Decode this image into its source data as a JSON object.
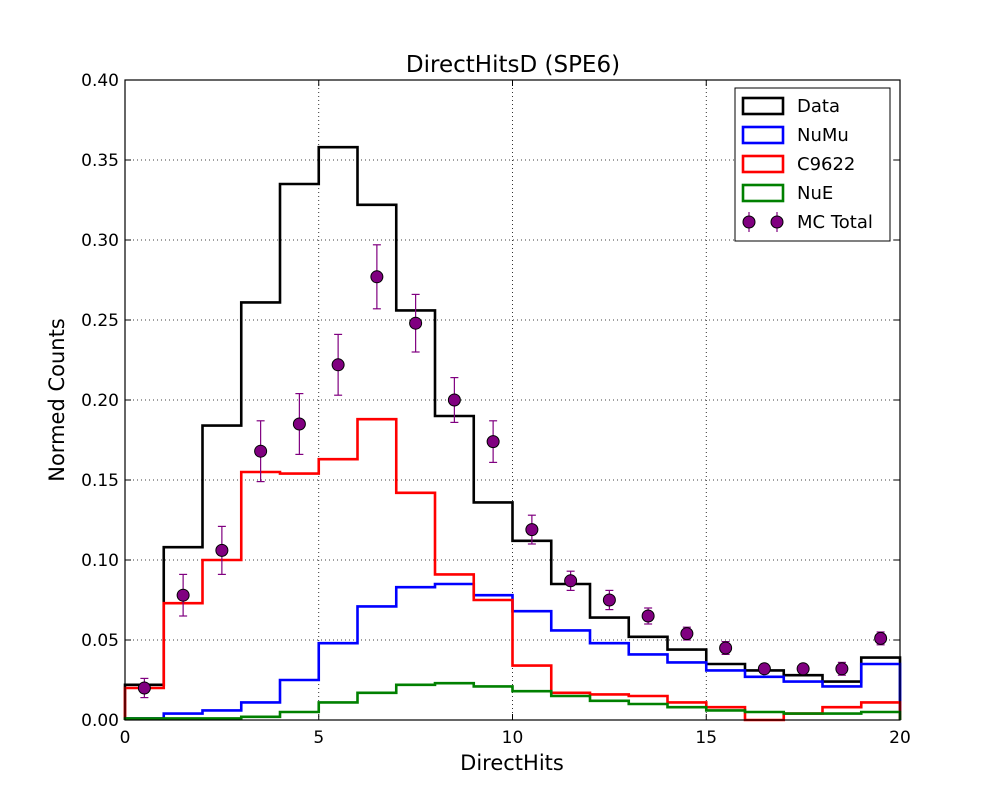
{
  "chart_data": {
    "type": "histogram",
    "title": "DirectHitsD (SPE6)",
    "xlabel": "DirectHits",
    "ylabel": "Normed Counts",
    "xlim": [
      0,
      20
    ],
    "ylim": [
      0,
      0.4
    ],
    "xticks": [
      0,
      5,
      10,
      15,
      20
    ],
    "xtick_labels": [
      "0",
      "5",
      "10",
      "15",
      "20"
    ],
    "yticks": [
      0,
      0.05,
      0.1,
      0.15,
      0.2,
      0.25,
      0.3,
      0.35,
      0.4
    ],
    "ytick_labels": [
      "0.00",
      "0.05",
      "0.10",
      "0.15",
      "0.20",
      "0.25",
      "0.30",
      "0.35",
      "0.40"
    ],
    "grid": true,
    "legend_position": "top-right",
    "bin_edges": [
      0,
      1,
      2,
      3,
      4,
      5,
      6,
      7,
      8,
      9,
      10,
      11,
      12,
      13,
      14,
      15,
      16,
      17,
      18,
      19,
      20
    ],
    "step_series": [
      {
        "name": "Data",
        "color": "#000000",
        "values": [
          0.022,
          0.108,
          0.184,
          0.261,
          0.335,
          0.358,
          0.322,
          0.256,
          0.19,
          0.136,
          0.112,
          0.085,
          0.064,
          0.052,
          0.044,
          0.035,
          0.031,
          0.028,
          0.024,
          0.039
        ]
      },
      {
        "name": "NuMu",
        "color": "#0000ff",
        "values": [
          0.001,
          0.004,
          0.006,
          0.011,
          0.025,
          0.048,
          0.071,
          0.083,
          0.085,
          0.078,
          0.068,
          0.056,
          0.048,
          0.041,
          0.036,
          0.031,
          0.027,
          0.024,
          0.021,
          0.035
        ]
      },
      {
        "name": "C9622",
        "color": "#ff0000",
        "values": [
          0.02,
          0.073,
          0.1,
          0.155,
          0.154,
          0.163,
          0.188,
          0.142,
          0.091,
          0.075,
          0.034,
          0.017,
          0.016,
          0.015,
          0.011,
          0.008,
          0.0,
          0.004,
          0.008,
          0.011
        ]
      },
      {
        "name": "NuE",
        "color": "#008000",
        "values": [
          0.001,
          0.001,
          0.001,
          0.002,
          0.005,
          0.011,
          0.017,
          0.022,
          0.023,
          0.021,
          0.018,
          0.015,
          0.012,
          0.01,
          0.008,
          0.006,
          0.005,
          0.004,
          0.004,
          0.005
        ]
      }
    ],
    "errorbar_series": {
      "name": "MC Total",
      "color": "#800080",
      "x": [
        0.5,
        1.5,
        2.5,
        3.5,
        4.5,
        5.5,
        6.5,
        7.5,
        8.5,
        9.5,
        10.5,
        11.5,
        12.5,
        13.5,
        14.5,
        15.5,
        16.5,
        17.5,
        18.5,
        19.5
      ],
      "y": [
        0.02,
        0.078,
        0.106,
        0.168,
        0.185,
        0.222,
        0.277,
        0.248,
        0.2,
        0.174,
        0.119,
        0.087,
        0.075,
        0.065,
        0.054,
        0.045,
        0.032,
        0.032,
        0.032,
        0.051
      ],
      "yerr": [
        0.006,
        0.013,
        0.015,
        0.019,
        0.019,
        0.019,
        0.02,
        0.018,
        0.014,
        0.013,
        0.009,
        0.006,
        0.006,
        0.005,
        0.004,
        0.004,
        0.003,
        0.003,
        0.004,
        0.004
      ]
    }
  }
}
